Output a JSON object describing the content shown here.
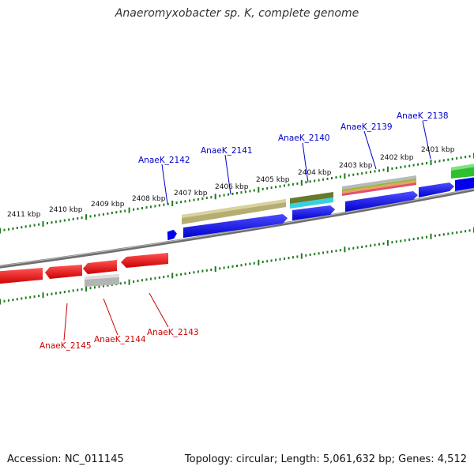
{
  "title": "Anaeromyxobacter sp. K, complete genome",
  "footer": {
    "accession": "Accession: NC_011145",
    "stats": "Topology: circular; Length: 5,061,632 bp; Genes: 4,512"
  },
  "colors": {
    "forward_label": "#0000cc",
    "reverse_label": "#cc0000",
    "tick": "#1e7a1e",
    "backbone": "#777777"
  },
  "kbp_ticks": [
    "2411 kbp",
    "2410 kbp",
    "2409 kbp",
    "2408 kbp",
    "2407 kbp",
    "2406 kbp",
    "2405 kbp",
    "2404 kbp",
    "2403 kbp",
    "2402 kbp",
    "2401 kbp"
  ],
  "gene_labels": {
    "forward": [
      "AnaeK_2142",
      "AnaeK_2141",
      "AnaeK_2140",
      "AnaeK_2139",
      "AnaeK_2138"
    ],
    "reverse": [
      "AnaeK_2145",
      "AnaeK_2144",
      "AnaeK_2143"
    ]
  }
}
